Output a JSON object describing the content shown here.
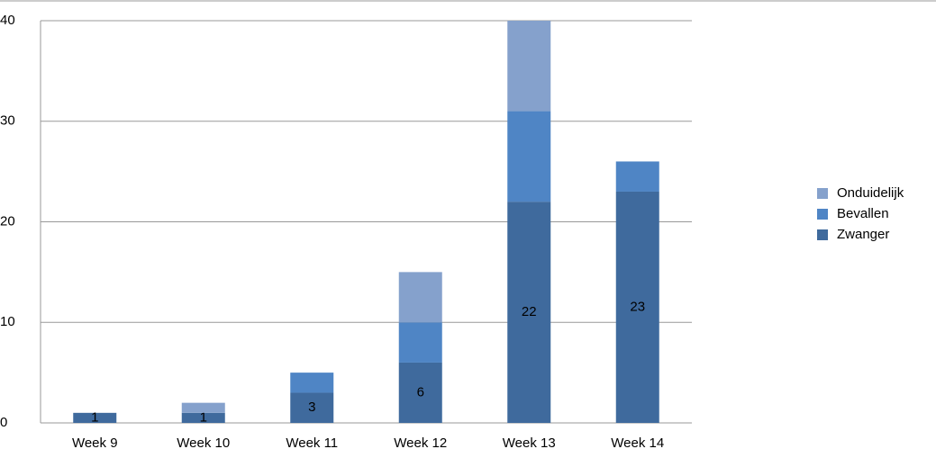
{
  "chart_data": {
    "type": "stacked_bar",
    "categories": [
      "Week 9",
      "Week 10",
      "Week 11",
      "Week 12",
      "Week 13",
      "Week 14"
    ],
    "series": [
      {
        "name": "Zwanger",
        "color": "#3f6a9d",
        "values": [
          1,
          1,
          3,
          6,
          22,
          23
        ],
        "data_labels": true
      },
      {
        "name": "Bevallen",
        "color": "#4f85c5",
        "values": [
          0,
          0,
          2,
          4,
          9,
          3
        ],
        "data_labels": false
      },
      {
        "name": "Onduidelijk",
        "color": "#85a1cc",
        "values": [
          0,
          1,
          0,
          5,
          9,
          0
        ],
        "data_labels": false
      }
    ],
    "ylim": [
      0,
      40
    ],
    "yticks": [
      0,
      10,
      20,
      30,
      40
    ],
    "grid": true,
    "legend": "right"
  }
}
